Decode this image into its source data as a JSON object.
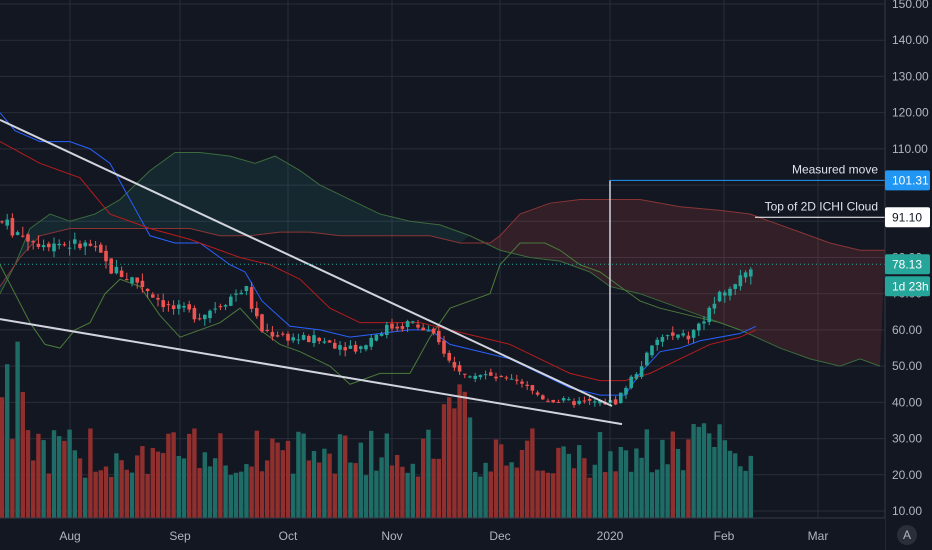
{
  "chart_data": {
    "type": "candlestick",
    "x_labels": [
      "Aug",
      "Sep",
      "Oct",
      "Nov",
      "Dec",
      "2020",
      "Feb",
      "Mar"
    ],
    "y_ticks": [
      10,
      20,
      30,
      40,
      50,
      60,
      70,
      80,
      90,
      100,
      110,
      120,
      130,
      140,
      150
    ],
    "y_tick_labels": [
      "10.00",
      "20.00",
      "30.00",
      "40.00",
      "50.00",
      "60.00",
      "70.00",
      "80.00",
      "90.00",
      "100.00",
      "110.00",
      "120.00",
      "130.00",
      "140.00",
      "150.00"
    ],
    "ylim": [
      8,
      152
    ],
    "colors": {
      "up": "#26a69a",
      "down": "#ef5350",
      "background": "#131722",
      "grid": "#2a2e39",
      "vol_up": "#1f6b66",
      "vol_down": "#8f2f2e",
      "measured": "#2962ff",
      "white_line": "#d1d4dc"
    },
    "price_tags": [
      {
        "label": "101.31",
        "value": 101.31,
        "bg": "#2196f3",
        "fg": "#ffffff"
      },
      {
        "label": "91.10",
        "value": 91.1,
        "bg": "#ffffff",
        "fg": "#131722"
      },
      {
        "label": "78.13",
        "value": 78.13,
        "bg": "#26a69a",
        "fg": "#ffffff"
      },
      {
        "label": "1d 23h",
        "bg": "#26a69a",
        "fg": "#ffffff"
      }
    ],
    "annotations": [
      {
        "text": "Measured move",
        "value": 101.31
      },
      {
        "text": "Top of 2D ICHI Cloud",
        "value": 91.1
      }
    ],
    "measured_move": {
      "start_value": 40,
      "end_value": 101.31
    },
    "trend_lines": [
      {
        "name": "upper wedge",
        "from": 118,
        "to": 39
      },
      {
        "name": "lower wedge",
        "from": 63,
        "to": 34
      }
    ],
    "corner_icon": "A"
  }
}
